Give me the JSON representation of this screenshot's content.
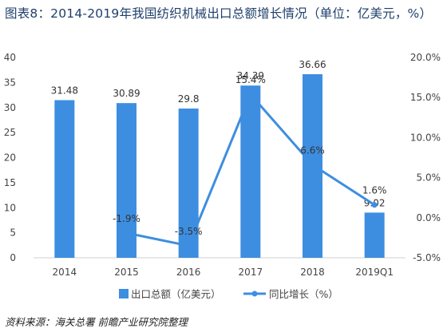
{
  "title": "图表8：2014-2019年我国纺织机械出口总额增长情况（单位：亿美元，%）",
  "source": "资料来源：海关总署 前瞻产业研究院整理",
  "chart_data": {
    "type": "bar",
    "categories": [
      "2014",
      "2015",
      "2016",
      "2017",
      "2018",
      "2019Q1"
    ],
    "series": [
      {
        "name": "出口总额（亿美元）",
        "type": "bar",
        "axis": "left",
        "color": "#3d8ee0",
        "values": [
          31.48,
          30.89,
          29.8,
          34.39,
          36.66,
          9.02
        ],
        "labels": [
          "31.48",
          "30.89",
          "29.8",
          "34.39",
          "36.66",
          "9.02"
        ]
      },
      {
        "name": "同比增长（%）",
        "type": "line",
        "axis": "right",
        "color": "#3d8ee0",
        "values": [
          null,
          -1.9,
          -3.5,
          15.4,
          6.6,
          1.6
        ],
        "labels": [
          "",
          "-1.9%",
          "-3.5%",
          "15.4%",
          "6.6%",
          "1.6%"
        ]
      }
    ],
    "y_left": {
      "min": 0,
      "max": 40,
      "ticks": [
        "0",
        "5",
        "10",
        "15",
        "20",
        "25",
        "30",
        "35",
        "40"
      ]
    },
    "y_right": {
      "min": -5,
      "max": 20,
      "ticks": [
        "-5.0%",
        "0.0%",
        "5.0%",
        "10.0%",
        "15.0%",
        "20.0%"
      ]
    },
    "legend": {
      "position": "bottom",
      "items": [
        "出口总额（亿美元）",
        "同比增长（%）"
      ]
    },
    "grid": false
  }
}
